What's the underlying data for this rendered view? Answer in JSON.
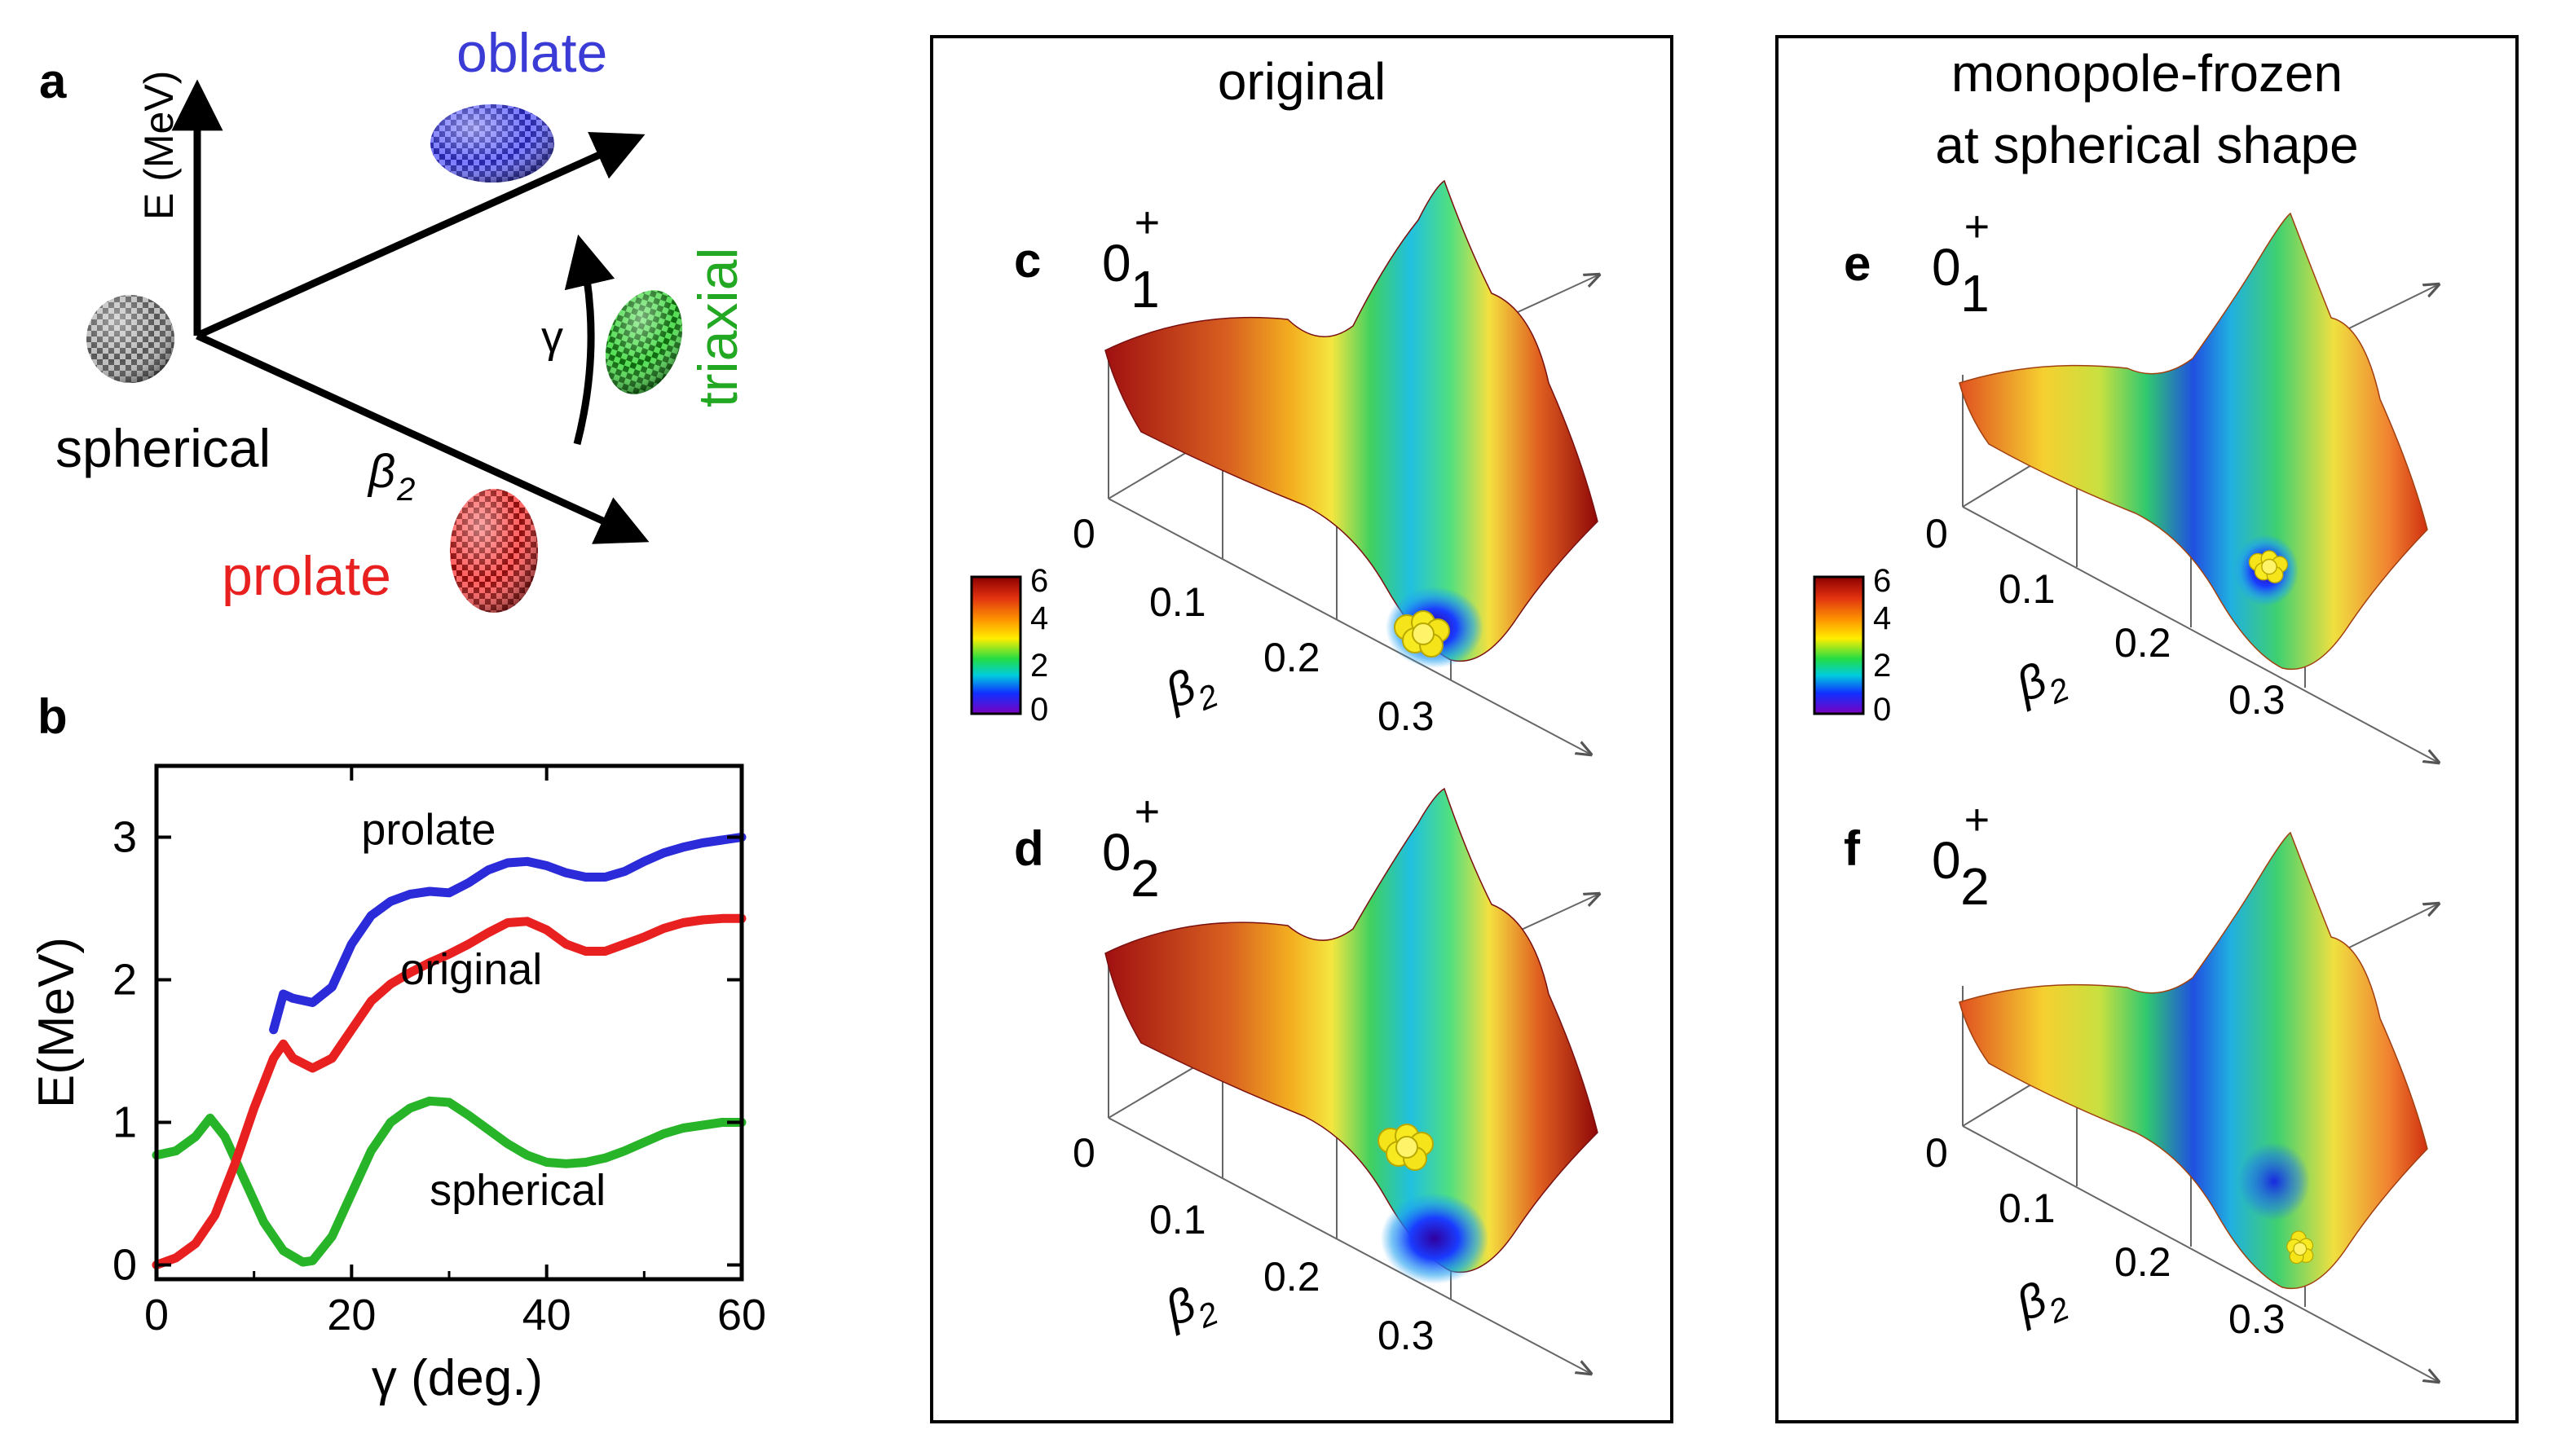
{
  "panel_a": {
    "label": "a",
    "energy_axis": "E (MeV)",
    "gamma": "γ",
    "beta": "β",
    "beta_sub": "2",
    "shapes": {
      "spherical": "spherical",
      "oblate": "oblate",
      "prolate": "prolate",
      "triaxial": "triaxial"
    },
    "colors": {
      "spherical": "#888888",
      "oblate": "#3b3bd6",
      "prolate": "#d42020",
      "triaxial": "#22a822"
    }
  },
  "panel_b": {
    "label": "b",
    "chart_data": {
      "type": "line",
      "xlabel": "γ (deg.)",
      "ylabel": "E(MeV)",
      "xlim": [
        0,
        60
      ],
      "ylim": [
        -0.1,
        3.5
      ],
      "xticks": [
        0,
        20,
        40,
        60
      ],
      "yticks": [
        0,
        1,
        2,
        3
      ],
      "xtick_labels": [
        "0",
        "20",
        "40",
        "60"
      ],
      "ytick_labels": [
        "0",
        "1",
        "2",
        "3"
      ],
      "series": [
        {
          "name": "prolate",
          "color": "#2b2bd9",
          "x": [
            12,
            13,
            14,
            16,
            18,
            20,
            22,
            24,
            26,
            28,
            30,
            32,
            34,
            36,
            38,
            40,
            42,
            44,
            46,
            48,
            50,
            52,
            54,
            56,
            58,
            60
          ],
          "y": [
            1.65,
            1.9,
            1.87,
            1.84,
            1.95,
            2.25,
            2.45,
            2.55,
            2.6,
            2.62,
            2.61,
            2.68,
            2.77,
            2.82,
            2.83,
            2.8,
            2.75,
            2.72,
            2.72,
            2.76,
            2.83,
            2.89,
            2.93,
            2.96,
            2.98,
            3.0
          ]
        },
        {
          "name": "original",
          "color": "#e82020",
          "x": [
            0,
            2,
            4,
            6,
            8,
            10,
            12,
            13,
            14,
            16,
            18,
            20,
            22,
            24,
            26,
            28,
            30,
            32,
            34,
            36,
            38,
            40,
            42,
            44,
            46,
            48,
            50,
            52,
            54,
            56,
            58,
            60
          ],
          "y": [
            0.0,
            0.05,
            0.15,
            0.35,
            0.7,
            1.1,
            1.45,
            1.55,
            1.45,
            1.38,
            1.45,
            1.65,
            1.85,
            1.97,
            2.05,
            2.12,
            2.18,
            2.25,
            2.33,
            2.4,
            2.41,
            2.35,
            2.25,
            2.2,
            2.2,
            2.25,
            2.3,
            2.36,
            2.4,
            2.42,
            2.43,
            2.43
          ]
        },
        {
          "name": "spherical",
          "color": "#28b428",
          "x": [
            0,
            2,
            4,
            5.5,
            7,
            9,
            11,
            13,
            15,
            16,
            18,
            20,
            22,
            24,
            26,
            28,
            30,
            32,
            34,
            36,
            38,
            40,
            42,
            44,
            46,
            48,
            50,
            52,
            54,
            56,
            58,
            60
          ],
          "y": [
            0.77,
            0.8,
            0.9,
            1.03,
            0.9,
            0.6,
            0.3,
            0.1,
            0.02,
            0.03,
            0.2,
            0.5,
            0.8,
            1.0,
            1.1,
            1.15,
            1.14,
            1.05,
            0.95,
            0.85,
            0.77,
            0.72,
            0.71,
            0.72,
            0.75,
            0.8,
            0.86,
            0.92,
            0.96,
            0.98,
            1.0,
            1.0
          ]
        }
      ],
      "curve_labels": [
        "prolate",
        "original",
        "spherical"
      ]
    }
  },
  "panel_cd": {
    "box_title": "original",
    "c_label": "c",
    "d_label": "d",
    "state_c": {
      "base": "0",
      "sup": "+",
      "sub": "1"
    },
    "state_d": {
      "base": "0",
      "sup": "+",
      "sub": "2"
    },
    "beta_ticks": [
      "0",
      "0.1",
      "0.2",
      "0.3"
    ],
    "beta": "β",
    "beta_sub": "2",
    "colorbar_ticks": [
      "6",
      "4",
      "2",
      "0"
    ]
  },
  "panel_ef": {
    "box_title_line1": "monopole-frozen",
    "box_title_line2": "at spherical shape",
    "e_label": "e",
    "f_label": "f",
    "state_e": {
      "base": "0",
      "sup": "+",
      "sub": "1"
    },
    "state_f": {
      "base": "0",
      "sup": "+",
      "sub": "2"
    },
    "beta_ticks": [
      "0",
      "0.1",
      "0.2",
      "0.3"
    ],
    "beta": "β",
    "beta_sub": "2",
    "colorbar_ticks": [
      "6",
      "4",
      "2",
      "0"
    ]
  }
}
